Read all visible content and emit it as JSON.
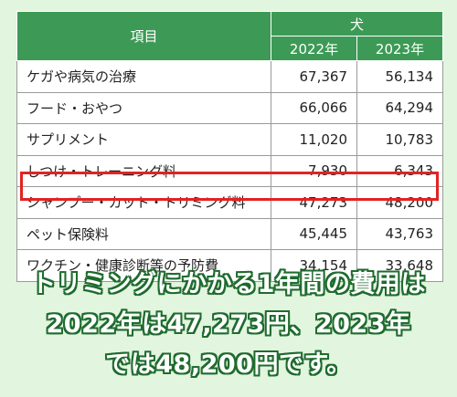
{
  "table": {
    "header_item": "項目",
    "header_group": "犬",
    "year1": "2022年",
    "year2": "2023年",
    "rows": [
      {
        "item": "ケガや病気の治療",
        "v2022": "67,367",
        "v2023": "56,134"
      },
      {
        "item": "フード・おやつ",
        "v2022": "66,066",
        "v2023": "64,294"
      },
      {
        "item": "サプリメント",
        "v2022": "11,020",
        "v2023": "10,783"
      },
      {
        "item": "しつけ・トレーニング料",
        "v2022": "7,930",
        "v2023": "6,343"
      },
      {
        "item": "シャンプー・カット・トリミング料",
        "v2022": "47,273",
        "v2023": "48,200"
      },
      {
        "item": "ペット保険料",
        "v2022": "45,445",
        "v2023": "43,763"
      },
      {
        "item": "ワクチン・健康診断等の予防費",
        "v2022": "34,154",
        "v2023": "33,648"
      }
    ]
  },
  "colors": {
    "header_green": "#3d9a56",
    "highlight_red": "#e32222",
    "background": "#e2f5df"
  },
  "caption": {
    "line1": "トリミングにかかる1年間の費用は",
    "line2": "2022年は47,273円、2023年",
    "line3": "では48,200円です。"
  }
}
